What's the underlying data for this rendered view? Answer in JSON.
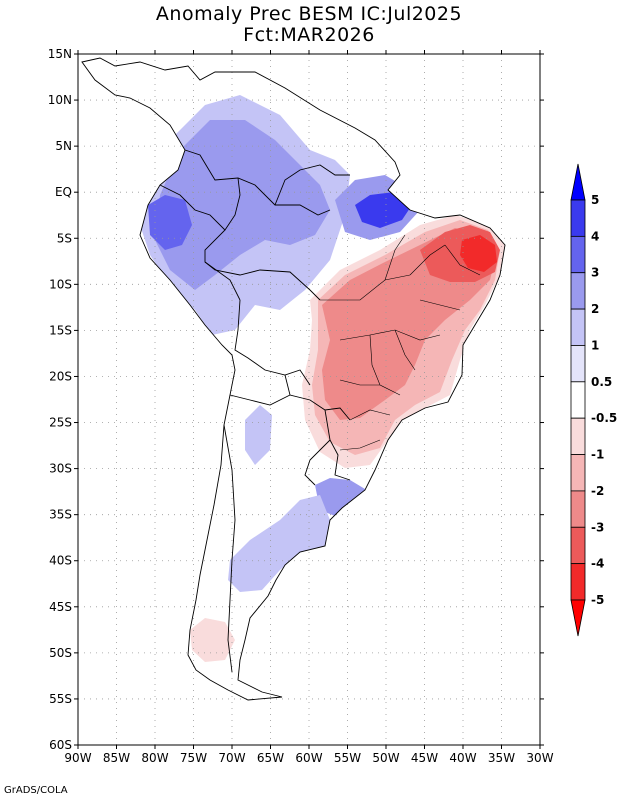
{
  "header": {
    "title_line1": "Anomaly Prec BESM IC:Jul2025",
    "title_line2": "Fct:MAR2026"
  },
  "credit": "GrADS/COLA",
  "map": {
    "lat_labels": [
      "15N",
      "10N",
      "5N",
      "EQ",
      "5S",
      "10S",
      "15S",
      "20S",
      "25S",
      "30S",
      "35S",
      "40S",
      "45S",
      "50S",
      "55S",
      "60S"
    ],
    "lon_labels": [
      "90W",
      "85W",
      "80W",
      "75W",
      "70W",
      "65W",
      "60W",
      "55W",
      "50W",
      "45W",
      "40W",
      "35W",
      "30W"
    ],
    "lat_range": [
      15,
      -60
    ],
    "lon_range": [
      -90,
      -30
    ]
  },
  "colorbar": {
    "labels": [
      "5",
      "4",
      "3",
      "2",
      "1",
      "0.5",
      "-0.5",
      "-1",
      "-2",
      "-3",
      "-4",
      "-5"
    ],
    "colors": [
      "#0000ff",
      "#3a3aee",
      "#6464ee",
      "#9a9aee",
      "#c4c4f6",
      "#e4e4fa",
      "#ffffff",
      "#f9dcdc",
      "#f5b6b6",
      "#ee8a8a",
      "#ec5a5a",
      "#f22a2a",
      "#ff0000"
    ]
  },
  "anomaly_regions": [
    {
      "name": "northwest-positive",
      "sign": "positive",
      "level": 2
    },
    {
      "name": "amazon-positive",
      "sign": "positive",
      "level": 1
    },
    {
      "name": "ecuador-peru-positive",
      "sign": "positive",
      "level": 3
    },
    {
      "name": "amazon-mouth-positive",
      "sign": "positive",
      "level": 4
    },
    {
      "name": "northeast-brazil-negative",
      "sign": "negative",
      "level": -4
    },
    {
      "name": "central-brazil-negative",
      "sign": "negative",
      "level": -2
    },
    {
      "name": "south-brazil-negative",
      "sign": "negative",
      "level": -2
    },
    {
      "name": "uruguay-positive",
      "sign": "positive",
      "level": 2
    },
    {
      "name": "patagonia-positive",
      "sign": "positive",
      "level": 1
    },
    {
      "name": "southern-chile-negative",
      "sign": "negative",
      "level": -1
    }
  ]
}
